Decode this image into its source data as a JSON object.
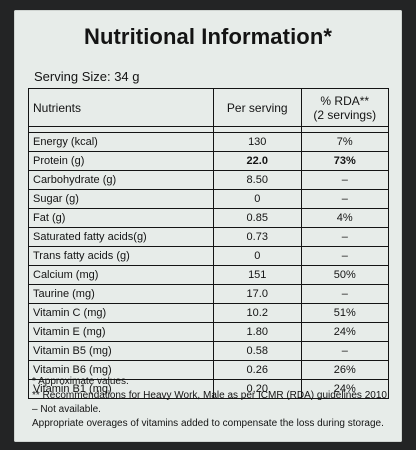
{
  "title": "Nutritional Information*",
  "serving_size": "Serving Size: 34 g",
  "table": {
    "headers": {
      "nutrients": "Nutrients",
      "per_serving": "Per serving",
      "rda_line1": "% RDA**",
      "rda_line2": "(2 servings)"
    },
    "rows": [
      {
        "name": "Energy (kcal)",
        "per_serving": "130",
        "rda": "7%"
      },
      {
        "name": "Protein (g)",
        "per_serving": "22.0",
        "rda": "73%"
      },
      {
        "name": "Carbohydrate (g)",
        "per_serving": "8.50",
        "rda": "–"
      },
      {
        "name": "Sugar (g)",
        "per_serving": "0",
        "rda": "–"
      },
      {
        "name": "Fat (g)",
        "per_serving": "0.85",
        "rda": "4%"
      },
      {
        "name": "Saturated fatty acids(g)",
        "per_serving": "0.73",
        "rda": "–"
      },
      {
        "name": "Trans fatty acids (g)",
        "per_serving": "0",
        "rda": "–"
      },
      {
        "name": "Calcium (mg)",
        "per_serving": "151",
        "rda": "50%"
      },
      {
        "name": "Taurine (mg)",
        "per_serving": "17.0",
        "rda": "–"
      },
      {
        "name": "Vitamin C (mg)",
        "per_serving": "10.2",
        "rda": "51%"
      },
      {
        "name": "Vitamin E (mg)",
        "per_serving": "1.80",
        "rda": "24%"
      },
      {
        "name": "Vitamin B5 (mg)",
        "per_serving": "0.58",
        "rda": "–"
      },
      {
        "name": "Vitamin B6 (mg)",
        "per_serving": "0.26",
        "rda": "26%"
      },
      {
        "name": "Vitamin B1 (mg)",
        "per_serving": "0.20",
        "rda": "24%"
      }
    ]
  },
  "footnotes": [
    "* Approximate values.",
    "** Recommendations for Heavy Work, Male as per ICMR (RDA) guidelines 2010.",
    "– Not available.",
    "Appropriate overages of vitamins added to compensate the loss during storage."
  ]
}
